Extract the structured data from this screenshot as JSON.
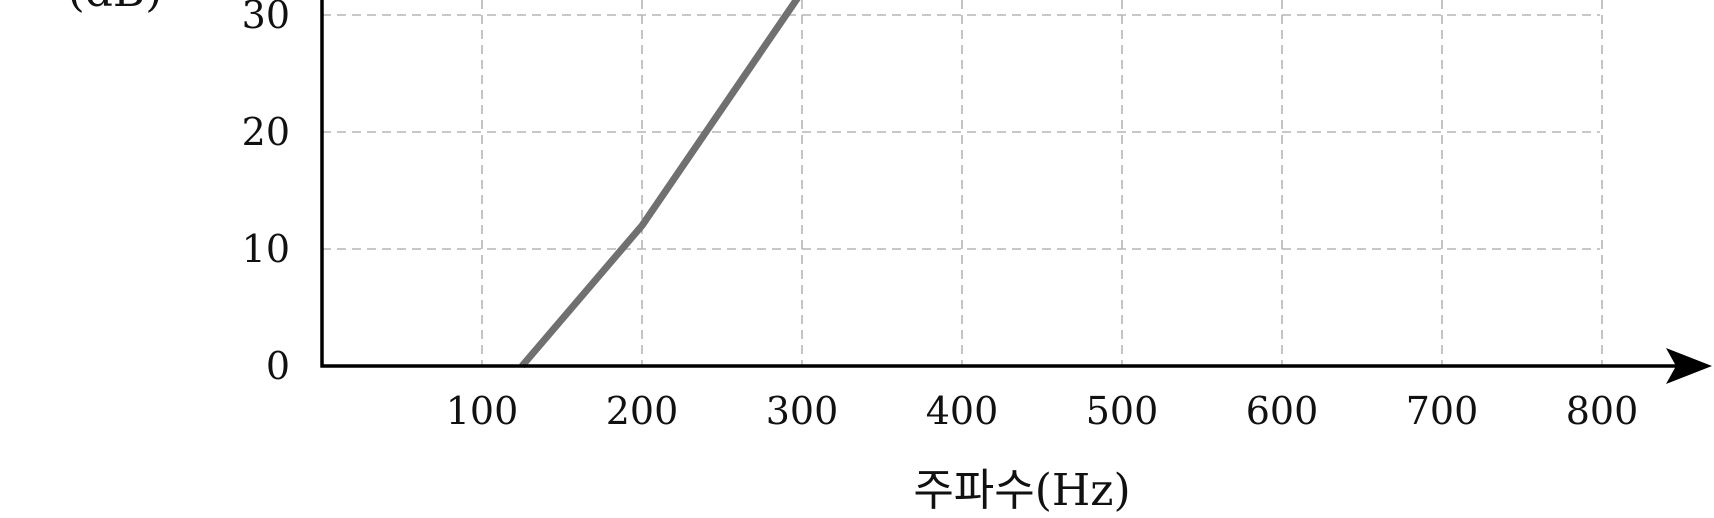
{
  "chart_data": {
    "type": "line",
    "xlabel": "주파수(Hz)",
    "ylabel": "(dB)",
    "x_ticks": [
      100,
      200,
      300,
      400,
      500,
      600,
      700,
      800
    ],
    "y_ticks": [
      0,
      10,
      20,
      30
    ],
    "xlim": [
      0,
      875
    ],
    "ylim": [
      0,
      33
    ],
    "grid": true,
    "series": [
      {
        "x": [
          125,
          200,
          300
        ],
        "y": [
          0,
          12,
          32
        ]
      }
    ],
    "colors": {
      "line": "#707070",
      "grid": "#b5b5b5",
      "axis": "#000000"
    }
  }
}
